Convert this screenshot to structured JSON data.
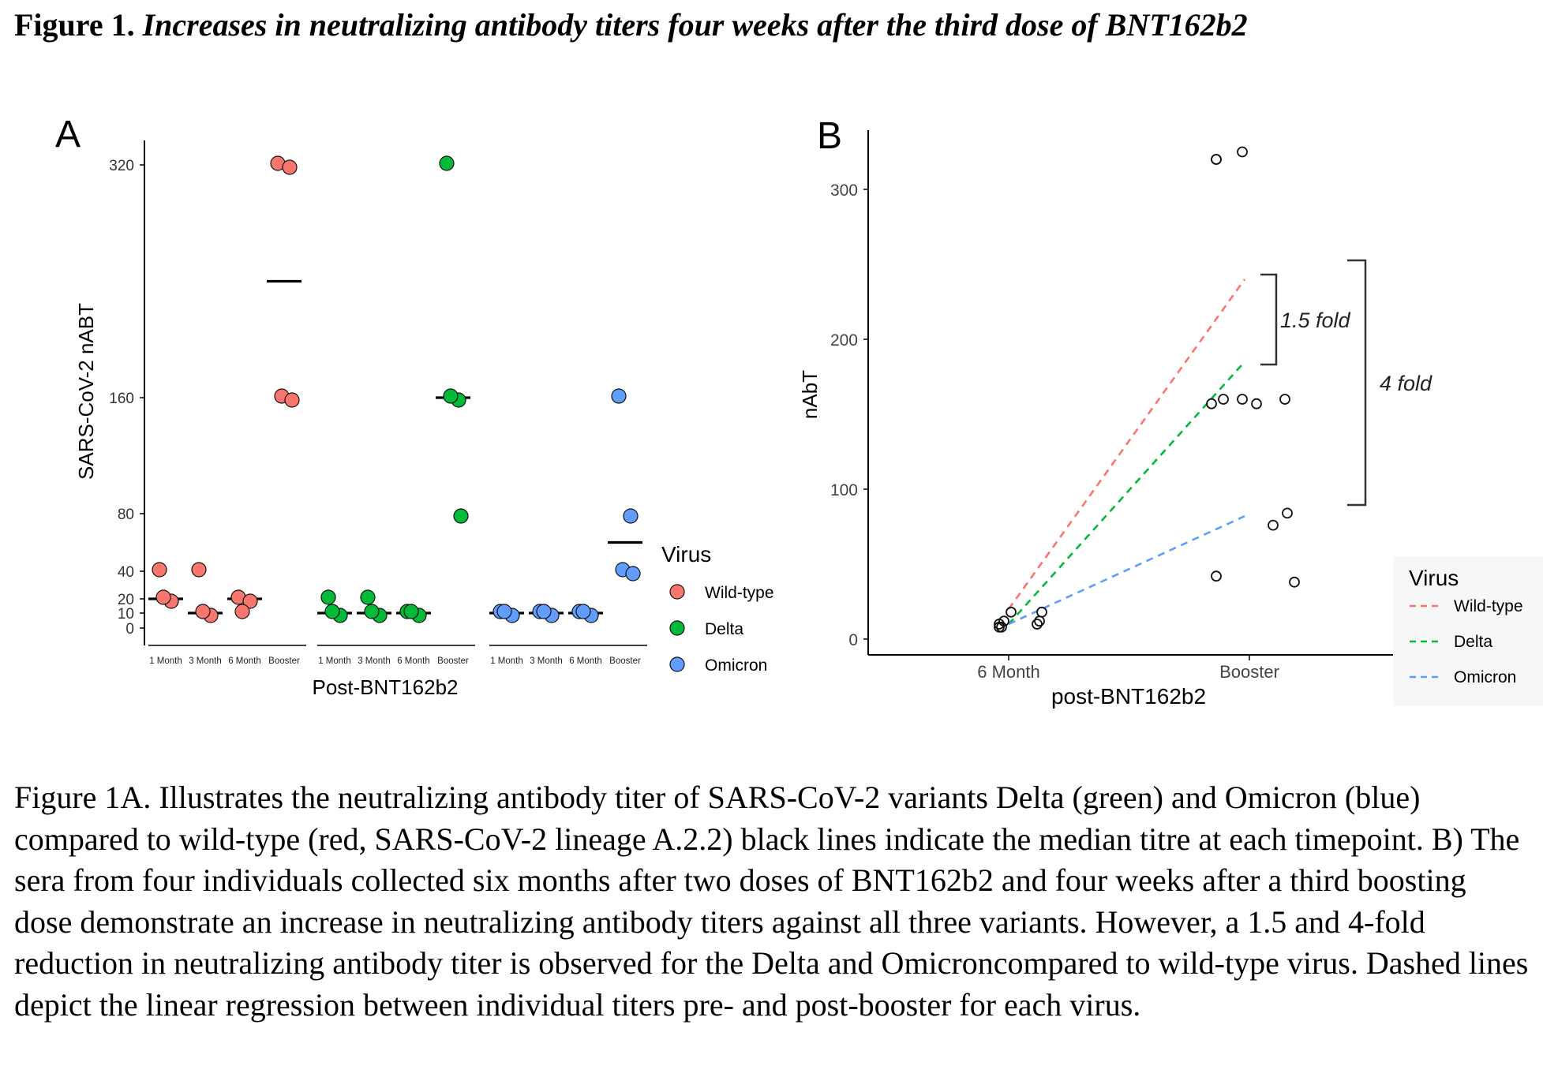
{
  "figure": {
    "number": "Figure 1.",
    "title": "Increases in neutralizing antibody titers four weeks after the third dose of BNT162b2",
    "caption": "Figure 1A. Illustrates the neutralizing antibody titer of SARS-CoV-2 variants Delta (green) and Omicron (blue) compared to wild-type (red, SARS-CoV-2 lineage A.2.2) black lines indicate the median titre at each timepoint. B) The sera from four individuals collected six months after two doses of BNT162b2 and four weeks after a third boosting dose demonstrate an increase in neutralizing antibody titers against all three variants. However, a 1.5 and 4-fold reduction in neutralizing antibody titer is observed for the Delta and Omicroncompared to wild-type virus. Dashed lines depict the linear regression between individual titers pre- and post-booster for each virus."
  },
  "colors": {
    "wild_type": "#F8766D",
    "delta": "#00BA38",
    "omicron": "#619CFF"
  },
  "chart_data": [
    {
      "panel": "A",
      "type": "scatter",
      "xlabel": "Post-BNT162b2",
      "ylabel": "SARS-CoV-2 nABT",
      "y_ticks": [
        0,
        10,
        20,
        40,
        80,
        160,
        320
      ],
      "categories": [
        "1 Month",
        "3 Month",
        "6 Month",
        "Booster"
      ],
      "legend_title": "Virus",
      "series": [
        {
          "name": "Wild-type",
          "color": "#F8766D",
          "points": [
            [
              0,
              40
            ],
            [
              0,
              20
            ],
            [
              0,
              20
            ],
            [
              1,
              40
            ],
            [
              1,
              10
            ],
            [
              1,
              10
            ],
            [
              2,
              20
            ],
            [
              2,
              20
            ],
            [
              2,
              10
            ],
            [
              3,
              320
            ],
            [
              3,
              320
            ],
            [
              3,
              160
            ],
            [
              3,
              160
            ]
          ],
          "medians": [
            20,
            10,
            20,
            240
          ]
        },
        {
          "name": "Delta",
          "color": "#00BA38",
          "points": [
            [
              0,
              20
            ],
            [
              0,
              10
            ],
            [
              0,
              10
            ],
            [
              1,
              20
            ],
            [
              1,
              10
            ],
            [
              1,
              10
            ],
            [
              2,
              10
            ],
            [
              2,
              10
            ],
            [
              2,
              10
            ],
            [
              3,
              320
            ],
            [
              3,
              160
            ],
            [
              3,
              160
            ],
            [
              3,
              80
            ]
          ],
          "medians": [
            10,
            10,
            10,
            160
          ]
        },
        {
          "name": "Omicron",
          "color": "#619CFF",
          "points": [
            [
              0,
              10
            ],
            [
              0,
              10
            ],
            [
              0,
              10
            ],
            [
              1,
              10
            ],
            [
              1,
              10
            ],
            [
              1,
              10
            ],
            [
              2,
              10
            ],
            [
              2,
              10
            ],
            [
              2,
              10
            ],
            [
              3,
              160
            ],
            [
              3,
              80
            ],
            [
              3,
              40
            ],
            [
              3,
              40
            ]
          ],
          "medians": [
            10,
            10,
            10,
            60
          ]
        }
      ]
    },
    {
      "panel": "B",
      "type": "scatter",
      "xlabel": "post-BNT162b2",
      "ylabel": "nAbT",
      "categories": [
        "6 Month",
        "Booster"
      ],
      "y_ticks": [
        0,
        100,
        200,
        300
      ],
      "ylim": [
        -5,
        335
      ],
      "legend_title": "Virus",
      "points_6month": [
        [
          -0.03,
          8
        ],
        [
          -0.04,
          10
        ],
        [
          -0.02,
          12
        ],
        [
          0.01,
          18
        ],
        [
          0.12,
          10
        ],
        [
          0.13,
          12
        ],
        [
          0.14,
          18
        ],
        [
          -0.04,
          8
        ]
      ],
      "points_booster": [
        [
          -0.14,
          320
        ],
        [
          -0.14,
          320
        ],
        [
          -0.03,
          325
        ],
        [
          -0.16,
          157
        ],
        [
          -0.11,
          160
        ],
        [
          -0.03,
          160
        ],
        [
          0.03,
          157
        ],
        [
          0.15,
          160
        ],
        [
          0.1,
          76
        ],
        [
          0.16,
          84
        ],
        [
          -0.14,
          42
        ],
        [
          0.19,
          38
        ]
      ],
      "regression": [
        {
          "name": "Wild-type",
          "color": "#F8766D",
          "start": 20,
          "end": 240
        },
        {
          "name": "Delta",
          "color": "#00BA38",
          "start": 10,
          "end": 185
        },
        {
          "name": "Omicron",
          "color": "#619CFF",
          "start": 10,
          "end": 82
        }
      ],
      "annotations": [
        "1.5 fold",
        "4 fold"
      ]
    }
  ]
}
